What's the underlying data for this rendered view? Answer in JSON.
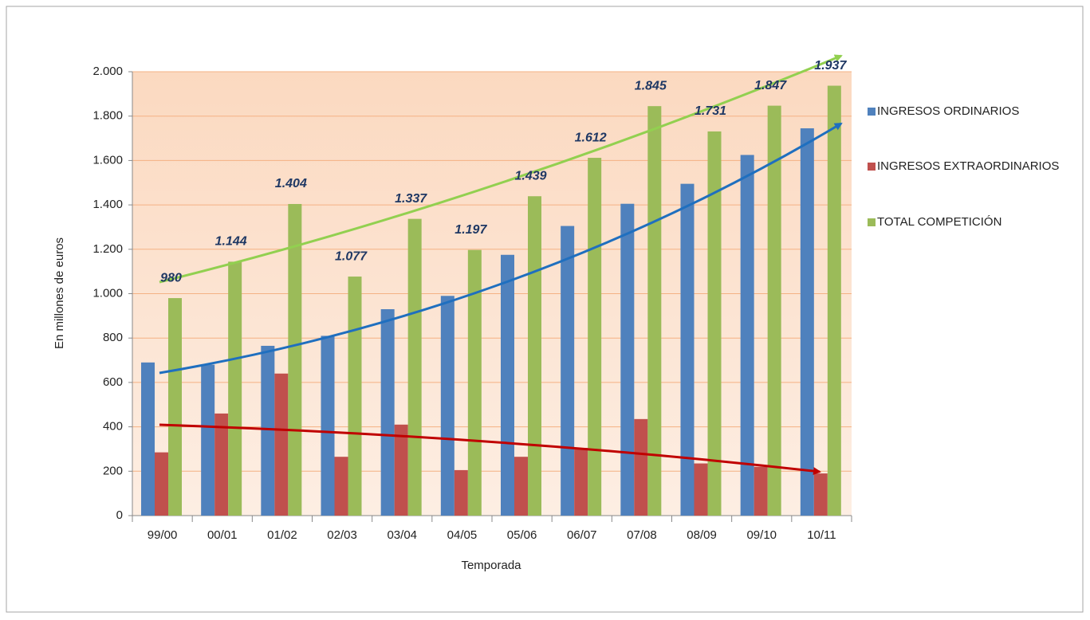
{
  "chart_data": {
    "type": "bar",
    "categories": [
      "99/00",
      "00/01",
      "01/02",
      "02/03",
      "03/04",
      "04/05",
      "05/06",
      "06/07",
      "07/08",
      "08/09",
      "09/10",
      "10/11"
    ],
    "series": [
      {
        "name": "INGRESOS ORDINARIOS",
        "color": "#4f81bd",
        "values": [
          690,
          680,
          765,
          810,
          930,
          990,
          1175,
          1305,
          1405,
          1495,
          1625,
          1745
        ]
      },
      {
        "name": "INGRESOS EXTRAORDINARIOS",
        "color": "#c0504d",
        "values": [
          285,
          460,
          640,
          265,
          410,
          205,
          265,
          305,
          435,
          235,
          220,
          190
        ]
      },
      {
        "name": "TOTAL COMPETICIÓN",
        "color": "#9bbb59",
        "values": [
          980,
          1144,
          1404,
          1077,
          1337,
          1197,
          1439,
          1612,
          1845,
          1731,
          1847,
          1937
        ],
        "value_labels": [
          "980",
          "1.144",
          "1.404",
          "1.077",
          "1.337",
          "1.197",
          "1.439",
          "1.612",
          "1.845",
          "1.731",
          "1.847",
          "1.937"
        ]
      }
    ],
    "xlabel": "Temporada",
    "ylabel": "En millones de euros",
    "ylim": [
      0,
      2000
    ],
    "yticks": [
      0,
      200,
      400,
      600,
      800,
      {
        "value": 1000,
        "label": "1.000"
      },
      {
        "value": 1200,
        "label": "1.200"
      },
      {
        "value": 1400,
        "label": "1.400"
      },
      {
        "value": 1600,
        "label": "1.600"
      },
      {
        "value": 1800,
        "label": "1.800"
      },
      {
        "value": 2000,
        "label": "2.000"
      }
    ],
    "grid": true,
    "legend": "right"
  }
}
